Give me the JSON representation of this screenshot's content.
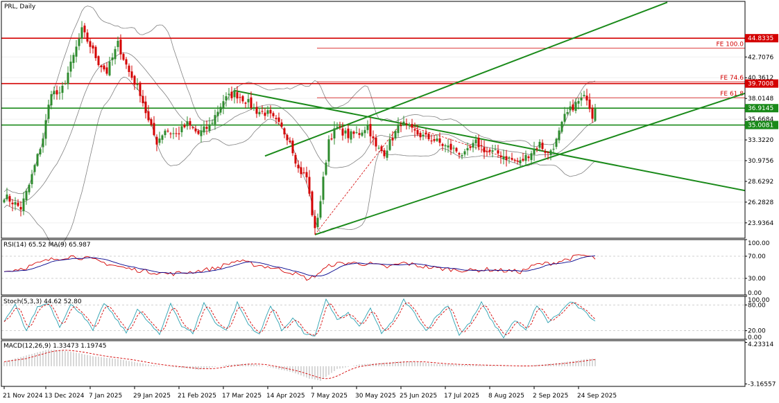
{
  "window": {
    "title": "PRL, Daily"
  },
  "colors": {
    "up": "#2e8b2e",
    "down": "#d40000",
    "bands": "#808080",
    "hline_red": "#d40000",
    "hline_green": "#1a8a1a",
    "trend": "#1a8a1a",
    "fe": "#d40000",
    "zigzag": "#d40000",
    "rsi": "#d40000",
    "rsi_ma": "#00008b",
    "stoch_main": "#2aa0b0",
    "stoch_signal": "#d40000",
    "macd_hist": "#b0b0b0",
    "macd_signal": "#d40000"
  },
  "chart_data": {
    "type": "candlestick",
    "title": "PRL, Daily",
    "price_axis": {
      "ylim": [
        22.2,
        49.0
      ],
      "ticks": [
        "23.9364",
        "26.2828",
        "28.6292",
        "30.9756",
        "33.3220",
        "35.6684",
        "38.0148",
        "40.3612",
        "42.7076"
      ]
    },
    "time_axis": {
      "labels": [
        "21 Nov 2024",
        "13 Dec 2024",
        "7 Jan 2025",
        "29 Jan 2025",
        "21 Feb 2025",
        "17 Mar 2025",
        "14 Apr 2025",
        "7 May 2025",
        "30 May 2025",
        "25 Jun 2025",
        "17 Jul 2025",
        "8 Aug 2025",
        "2 Sep 2025",
        "24 Sep 2025"
      ],
      "label_bar_index": [
        0,
        15,
        31,
        47,
        63,
        79,
        95,
        111,
        127,
        143,
        159,
        175,
        191,
        207
      ]
    },
    "bars_count": 214,
    "price_anchors": [
      [
        0,
        27.0
      ],
      [
        6,
        25.6
      ],
      [
        9,
        28.2
      ],
      [
        14,
        33.6
      ],
      [
        17,
        38.9
      ],
      [
        20,
        38.3
      ],
      [
        24,
        41.8
      ],
      [
        28,
        45.7
      ],
      [
        31,
        44.0
      ],
      [
        34,
        42.1
      ],
      [
        37,
        41.0
      ],
      [
        41,
        44.2
      ],
      [
        45,
        41.0
      ],
      [
        49,
        38.7
      ],
      [
        52,
        35.4
      ],
      [
        55,
        33.1
      ],
      [
        58,
        34.5
      ],
      [
        62,
        33.9
      ],
      [
        66,
        35.1
      ],
      [
        70,
        34.0
      ],
      [
        74,
        34.9
      ],
      [
        79,
        37.8
      ],
      [
        83,
        38.6
      ],
      [
        87,
        37.8
      ],
      [
        91,
        36.6
      ],
      [
        95,
        36.3
      ],
      [
        99,
        35.0
      ],
      [
        103,
        33.3
      ],
      [
        106,
        30.0
      ],
      [
        109,
        29.1
      ],
      [
        112,
        23.0
      ],
      [
        114,
        26.5
      ],
      [
        117,
        33.4
      ],
      [
        120,
        34.7
      ],
      [
        124,
        33.8
      ],
      [
        128,
        34.1
      ],
      [
        131,
        35.0
      ],
      [
        134,
        32.4
      ],
      [
        137,
        31.9
      ],
      [
        140,
        33.6
      ],
      [
        143,
        35.3
      ],
      [
        147,
        34.3
      ],
      [
        151,
        33.7
      ],
      [
        155,
        33.3
      ],
      [
        159,
        32.6
      ],
      [
        163,
        32.1
      ],
      [
        166,
        31.6
      ],
      [
        170,
        33.0
      ],
      [
        174,
        32.0
      ],
      [
        178,
        31.8
      ],
      [
        182,
        31.2
      ],
      [
        186,
        30.8
      ],
      [
        190,
        32.0
      ],
      [
        193,
        32.9
      ],
      [
        196,
        31.7
      ],
      [
        199,
        33.2
      ],
      [
        202,
        35.9
      ],
      [
        205,
        37.1
      ],
      [
        208,
        37.9
      ],
      [
        210,
        38.2
      ],
      [
        212,
        36.1
      ],
      [
        213,
        37.3
      ]
    ],
    "last_close": 36.9145,
    "bollinger_bands": {
      "period": 20
    },
    "horizontal_levels": [
      {
        "label": "44.8335",
        "value": 44.8335,
        "color": "#d40000"
      },
      {
        "label": "39.7008",
        "value": 39.7008,
        "color": "#d40000"
      },
      {
        "label": "36.9145",
        "value": 36.9145,
        "color": "#1a8a1a"
      },
      {
        "label": "35.0081",
        "value": 35.0081,
        "color": "#1a8a1a"
      }
    ],
    "fibonacci_expansion": [
      {
        "label": "FE 100.0",
        "value": 43.7
      },
      {
        "label": "FE 74.6",
        "value": 39.9
      },
      {
        "label": "FE 61.8",
        "value": 38.1
      }
    ],
    "zigzag": [
      [
        112,
        22.6
      ],
      [
        143,
        35.2
      ],
      [
        186,
        30.8
      ]
    ],
    "trendlines": [
      {
        "from": [
          83,
          38.9
        ],
        "to": [
          270,
          27.4
        ]
      },
      {
        "from": [
          94,
          31.5
        ],
        "to": [
          239,
          48.9
        ]
      },
      {
        "from": [
          112,
          22.6
        ],
        "to": [
          270,
          38.9
        ]
      }
    ],
    "rsi": {
      "label": "RSI(14) 65.52 MA(9) 65.987",
      "ylim": [
        0,
        100
      ],
      "ticks": [
        "100.00",
        "70.00",
        "30.00",
        "0.00"
      ],
      "levels": [
        70,
        30
      ],
      "anchors": [
        [
          0,
          42
        ],
        [
          8,
          50
        ],
        [
          16,
          63
        ],
        [
          24,
          70
        ],
        [
          30,
          66
        ],
        [
          36,
          58
        ],
        [
          44,
          48
        ],
        [
          52,
          42
        ],
        [
          60,
          38
        ],
        [
          68,
          42
        ],
        [
          76,
          48
        ],
        [
          84,
          62
        ],
        [
          90,
          55
        ],
        [
          96,
          50
        ],
        [
          104,
          40
        ],
        [
          110,
          28
        ],
        [
          114,
          42
        ],
        [
          118,
          55
        ],
        [
          124,
          58
        ],
        [
          132,
          56
        ],
        [
          138,
          50
        ],
        [
          144,
          58
        ],
        [
          150,
          52
        ],
        [
          156,
          48
        ],
        [
          162,
          46
        ],
        [
          168,
          44
        ],
        [
          174,
          46
        ],
        [
          180,
          44
        ],
        [
          186,
          42
        ],
        [
          192,
          55
        ],
        [
          198,
          58
        ],
        [
          204,
          66
        ],
        [
          208,
          72
        ],
        [
          210,
          70
        ],
        [
          213,
          66
        ]
      ]
    },
    "stochastic": {
      "label": "Stoch(5,3,3) 44.62 52.80",
      "ylim": [
        0,
        100
      ],
      "ticks": [
        "100.00",
        "80.00",
        "20.00",
        "0.00"
      ],
      "levels": [
        80,
        20
      ],
      "anchors": [
        [
          0,
          40
        ],
        [
          4,
          80
        ],
        [
          8,
          20
        ],
        [
          12,
          75
        ],
        [
          16,
          85
        ],
        [
          20,
          30
        ],
        [
          24,
          80
        ],
        [
          28,
          60
        ],
        [
          32,
          20
        ],
        [
          36,
          85
        ],
        [
          40,
          50
        ],
        [
          44,
          15
        ],
        [
          48,
          70
        ],
        [
          52,
          40
        ],
        [
          56,
          10
        ],
        [
          60,
          85
        ],
        [
          64,
          30
        ],
        [
          68,
          15
        ],
        [
          72,
          85
        ],
        [
          76,
          40
        ],
        [
          80,
          20
        ],
        [
          84,
          85
        ],
        [
          88,
          35
        ],
        [
          92,
          10
        ],
        [
          96,
          80
        ],
        [
          100,
          20
        ],
        [
          104,
          50
        ],
        [
          108,
          15
        ],
        [
          112,
          5
        ],
        [
          116,
          95
        ],
        [
          120,
          45
        ],
        [
          124,
          60
        ],
        [
          128,
          30
        ],
        [
          132,
          70
        ],
        [
          136,
          15
        ],
        [
          140,
          40
        ],
        [
          144,
          92
        ],
        [
          148,
          60
        ],
        [
          152,
          20
        ],
        [
          156,
          55
        ],
        [
          160,
          80
        ],
        [
          164,
          10
        ],
        [
          168,
          40
        ],
        [
          172,
          85
        ],
        [
          176,
          40
        ],
        [
          180,
          5
        ],
        [
          184,
          45
        ],
        [
          188,
          20
        ],
        [
          192,
          80
        ],
        [
          196,
          40
        ],
        [
          200,
          60
        ],
        [
          204,
          88
        ],
        [
          208,
          70
        ],
        [
          212,
          48
        ],
        [
          213,
          45
        ]
      ]
    },
    "macd": {
      "label": "MACD(12,26,9) 1.33473 1.19745",
      "ylim": [
        -3.6,
        4.55
      ],
      "ticks": [
        "4.23314",
        "-3.16557"
      ],
      "anchors": [
        [
          0,
          0.8
        ],
        [
          10,
          2.2
        ],
        [
          16,
          3.0
        ],
        [
          24,
          2.6
        ],
        [
          32,
          1.8
        ],
        [
          42,
          1.2
        ],
        [
          52,
          0.3
        ],
        [
          62,
          -0.2
        ],
        [
          70,
          -0.6
        ],
        [
          80,
          0.2
        ],
        [
          88,
          0.5
        ],
        [
          96,
          -0.2
        ],
        [
          104,
          -1.1
        ],
        [
          110,
          -2.2
        ],
        [
          114,
          -2.6
        ],
        [
          120,
          -0.5
        ],
        [
          128,
          0.3
        ],
        [
          136,
          0.6
        ],
        [
          144,
          0.9
        ],
        [
          150,
          0.7
        ],
        [
          156,
          0.4
        ],
        [
          162,
          0.3
        ],
        [
          170,
          0.2
        ],
        [
          178,
          0.1
        ],
        [
          186,
          0.0
        ],
        [
          194,
          0.3
        ],
        [
          200,
          0.6
        ],
        [
          206,
          1.0
        ],
        [
          210,
          1.3
        ],
        [
          213,
          1.33
        ]
      ]
    }
  }
}
